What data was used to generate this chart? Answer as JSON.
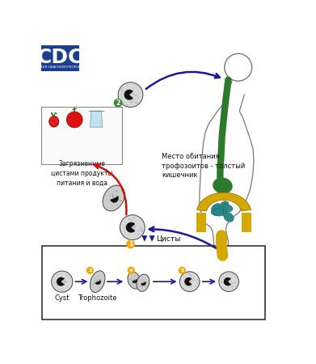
{
  "bg_color": "#ffffff",
  "cdc_bg": "#1a3f8f",
  "cdc_text": "CDC",
  "cdc_subtitle": "SAFER·HEALTHIER·PEOPLE™",
  "arrow_blue": "#1a1a99",
  "arrow_red": "#cc1111",
  "food_label": "Загрязненные\nцистами продукты\nпитания и вода",
  "habitat_label": "Место обитания\nтрофозоитов - толстый\nкишечник",
  "cysts_label": "Цисты",
  "cyst_label_en": "Cyst",
  "trophozoite_label_en": "Trophozoite",
  "intestine_green": "#2d7a2d",
  "intestine_yellow": "#d4a800",
  "intestine_teal": "#2a8888",
  "outline_color": "#777777",
  "triangle_color": "#1a1a99",
  "num1_color": "#f5a800",
  "num2_color": "#3a8a3a"
}
